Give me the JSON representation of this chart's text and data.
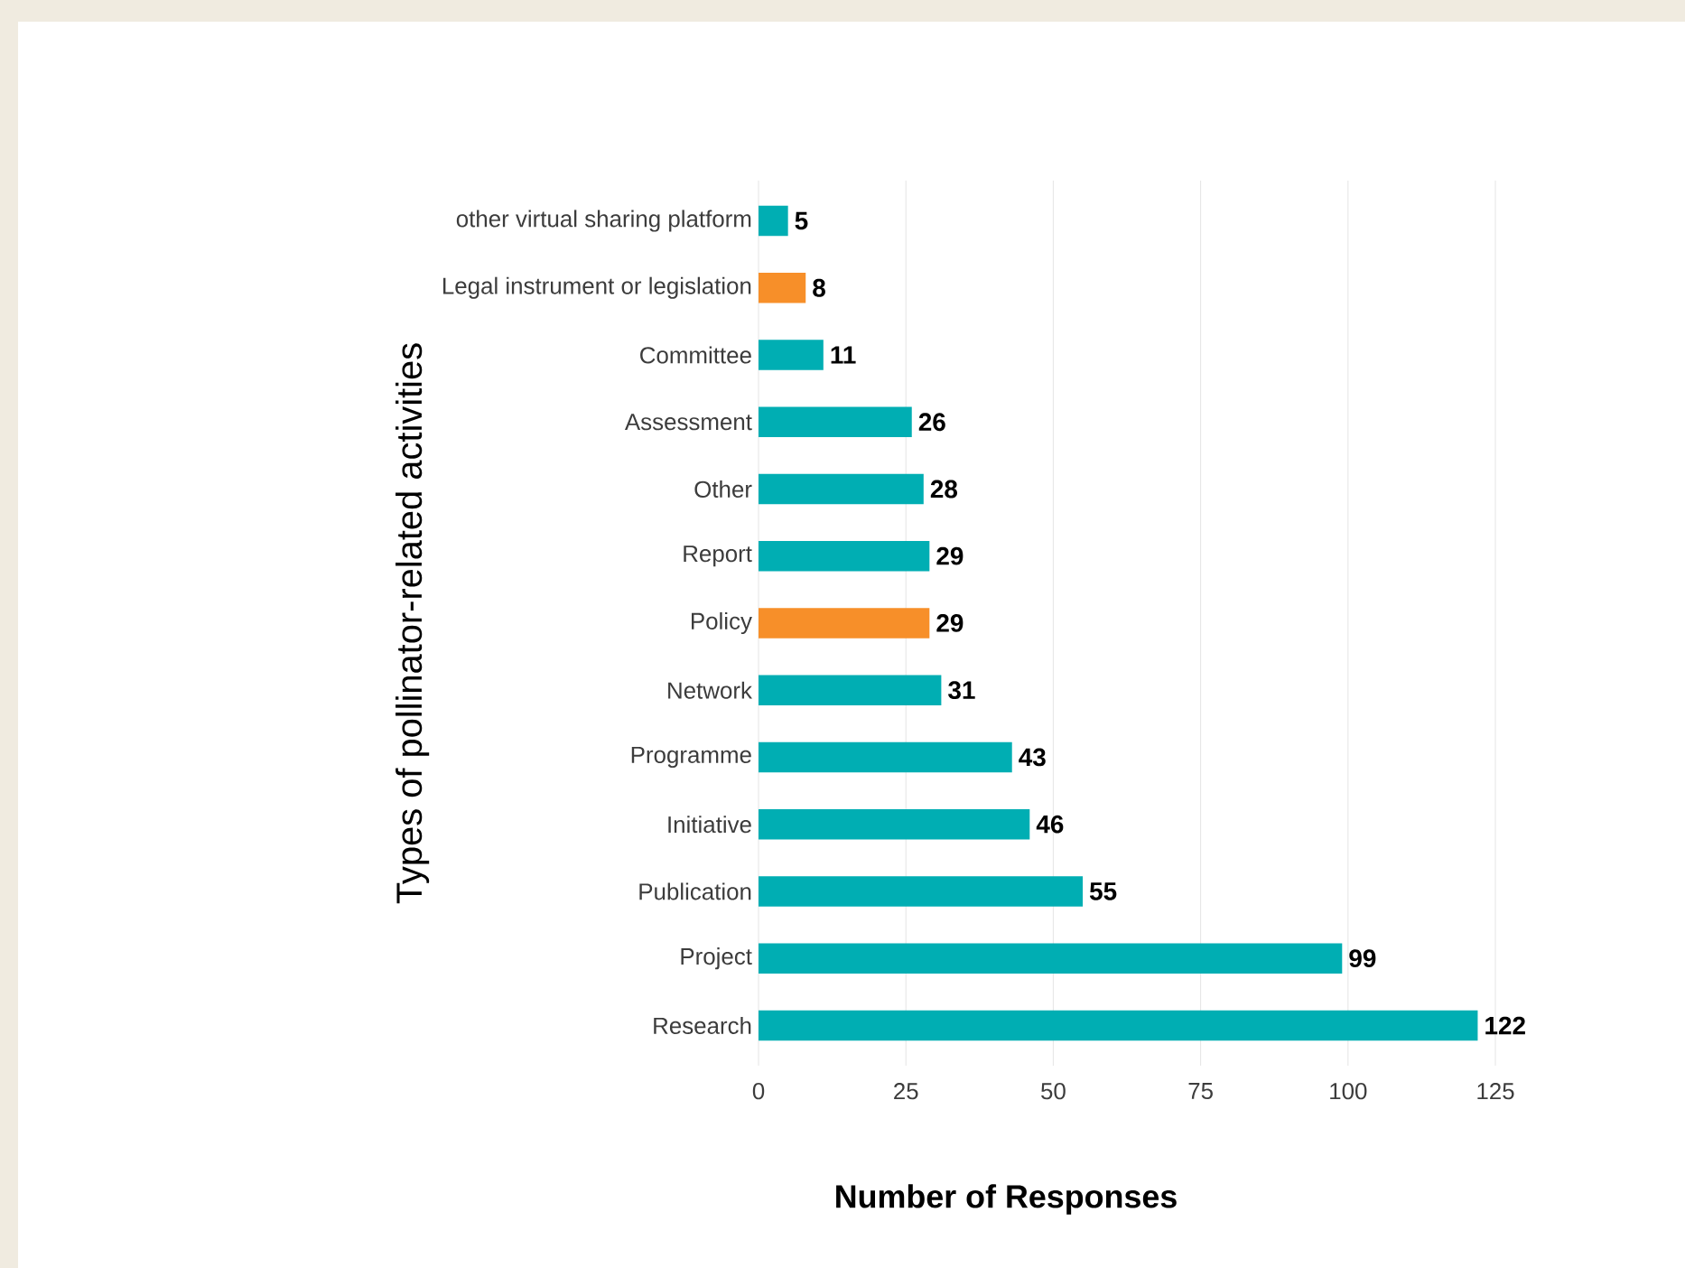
{
  "chart_data": {
    "type": "bar",
    "orientation": "horizontal",
    "ylabel": "Types of pollinator-related activities",
    "xlabel": "Number of Responses",
    "categories": [
      "other virtual sharing platform",
      "Legal instrument or legislation",
      "Committee",
      "Assessment",
      "Other",
      "Report",
      "Policy",
      "Network",
      "Programme",
      "Initiative",
      "Publication",
      "Project",
      "Research"
    ],
    "values": [
      5,
      8,
      11,
      26,
      28,
      29,
      29,
      31,
      43,
      46,
      55,
      99,
      122
    ],
    "colors": [
      "#00aeb3",
      "#f78f29",
      "#00aeb3",
      "#00aeb3",
      "#00aeb3",
      "#00aeb3",
      "#f78f29",
      "#00aeb3",
      "#00aeb3",
      "#00aeb3",
      "#00aeb3",
      "#00aeb3",
      "#00aeb3"
    ],
    "xlim": [
      0,
      125
    ],
    "xticks": [
      0,
      25,
      50,
      75,
      100,
      125
    ],
    "grid": "x",
    "data_labels": true
  }
}
